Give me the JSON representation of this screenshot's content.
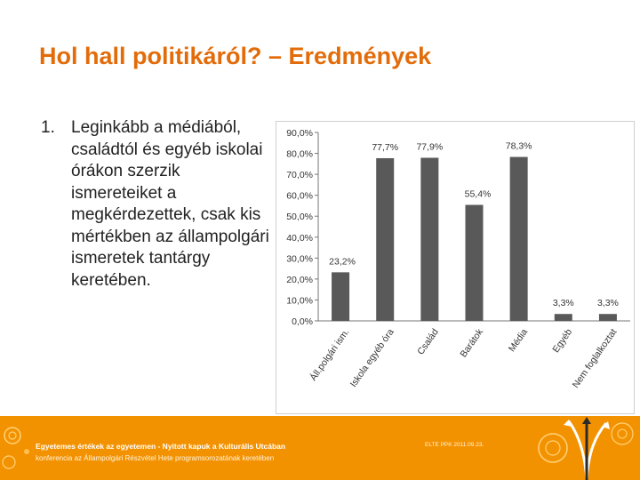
{
  "slide": {
    "title": "Hol hall politikáról? – Eredmények",
    "bullet_number": "1.",
    "bullet_text": "Leginkább a médiából, családtól és egyéb iskolai órákon szerzik ismereteiket a megkérdezettek, csak kis mértékben az állampolgári ismeretek tantárgy keretében."
  },
  "footer": {
    "line1": "Egyetemes értékek az egyetemen - Nyitott kapuk a Kulturális Utcában",
    "line2": "konferencia az Állampolgári Részvétel Hete programsorozatának keretében",
    "date": "ELTE PPK 2011.09.23."
  },
  "colors": {
    "title": "#e36c0a",
    "bar": "#595959",
    "footer": "#f39200"
  },
  "chart_data": {
    "type": "bar",
    "categories": [
      "Áll.polgári ism.",
      "Iskola egyéb óra",
      "Család",
      "Barátok",
      "Média",
      "Egyéb",
      "Nem foglalkoztat"
    ],
    "values": [
      23.2,
      77.7,
      77.9,
      55.4,
      78.3,
      3.3,
      3.3
    ],
    "data_labels": [
      "23,2%",
      "77,7%",
      "77,9%",
      "55,4%",
      "78,3%",
      "3,3%",
      "3,3%"
    ],
    "yticks": [
      0,
      10,
      20,
      30,
      40,
      50,
      60,
      70,
      80,
      90
    ],
    "ytick_labels": [
      "0,0%",
      "10,0%",
      "20,0%",
      "30,0%",
      "40,0%",
      "50,0%",
      "60,0%",
      "70,0%",
      "80,0%",
      "90,0%"
    ],
    "ylim": [
      0,
      90
    ],
    "title": "",
    "xlabel": "",
    "ylabel": "",
    "grid": false,
    "legend": "none"
  }
}
